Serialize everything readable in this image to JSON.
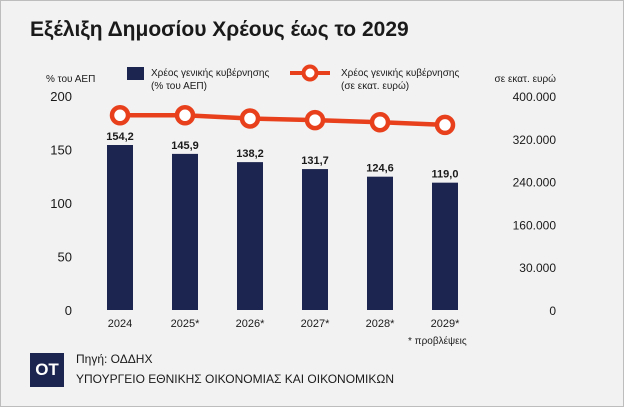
{
  "title": "Εξέλιξη Δημοσίου Χρέους έως το 2029",
  "chart_data": {
    "type": "bar",
    "categories": [
      "2024",
      "2025*",
      "2026*",
      "2027*",
      "2028*",
      "2029*"
    ],
    "series": [
      {
        "name": "Χρέος γενικής κυβέρνησης (% του ΑΕΠ)",
        "kind": "bar",
        "axis": "left",
        "values": [
          154.2,
          145.9,
          138.2,
          131.7,
          124.6,
          119.0
        ],
        "labels": [
          "154,2",
          "145,9",
          "138,2",
          "131,7",
          "124,6",
          "119,0"
        ],
        "color": "#1c2450"
      },
      {
        "name": "Χρέος γενικής κυβέρνησης (σε εκατ. ευρώ)",
        "kind": "line",
        "axis": "right",
        "values": [
          364000,
          364000,
          358000,
          355000,
          351000,
          346000
        ],
        "color": "#e8401c"
      }
    ],
    "left_axis": {
      "unit_label": "% του ΑΕΠ",
      "ticks": [
        0,
        50,
        100,
        150,
        200
      ],
      "tick_labels": [
        "0",
        "50",
        "100",
        "150",
        "200"
      ],
      "ylim": [
        0,
        200
      ]
    },
    "right_axis": {
      "unit_label": "σε εκατ. ευρώ",
      "tick_labels": [
        "0",
        "30.000",
        "160.000",
        "240.000",
        "320.000",
        "400.000"
      ],
      "ylim": [
        0,
        400000
      ]
    },
    "legend": [
      {
        "line1": "Χρέος γενικής κυβέρνησης",
        "line2": "(% του ΑΕΠ)"
      },
      {
        "line1": "Χρέος γενικής κυβέρνησης",
        "line2": "(σε εκατ. ευρώ)"
      }
    ],
    "legend_position": "top",
    "grid": false,
    "footnote": "*  προβλέψεις"
  },
  "source": {
    "logo_text": "ΟΤ",
    "line1": "Πηγή: ΟΔΔΗΧ",
    "line2": "ΥΠΟΥΡΓΕΙΟ ΕΘΝΙΚΗΣ ΟΙΚΟΝΟΜΙΑΣ ΚΑΙ ΟΙΚΟΝΟΜΙΚΩΝ"
  }
}
